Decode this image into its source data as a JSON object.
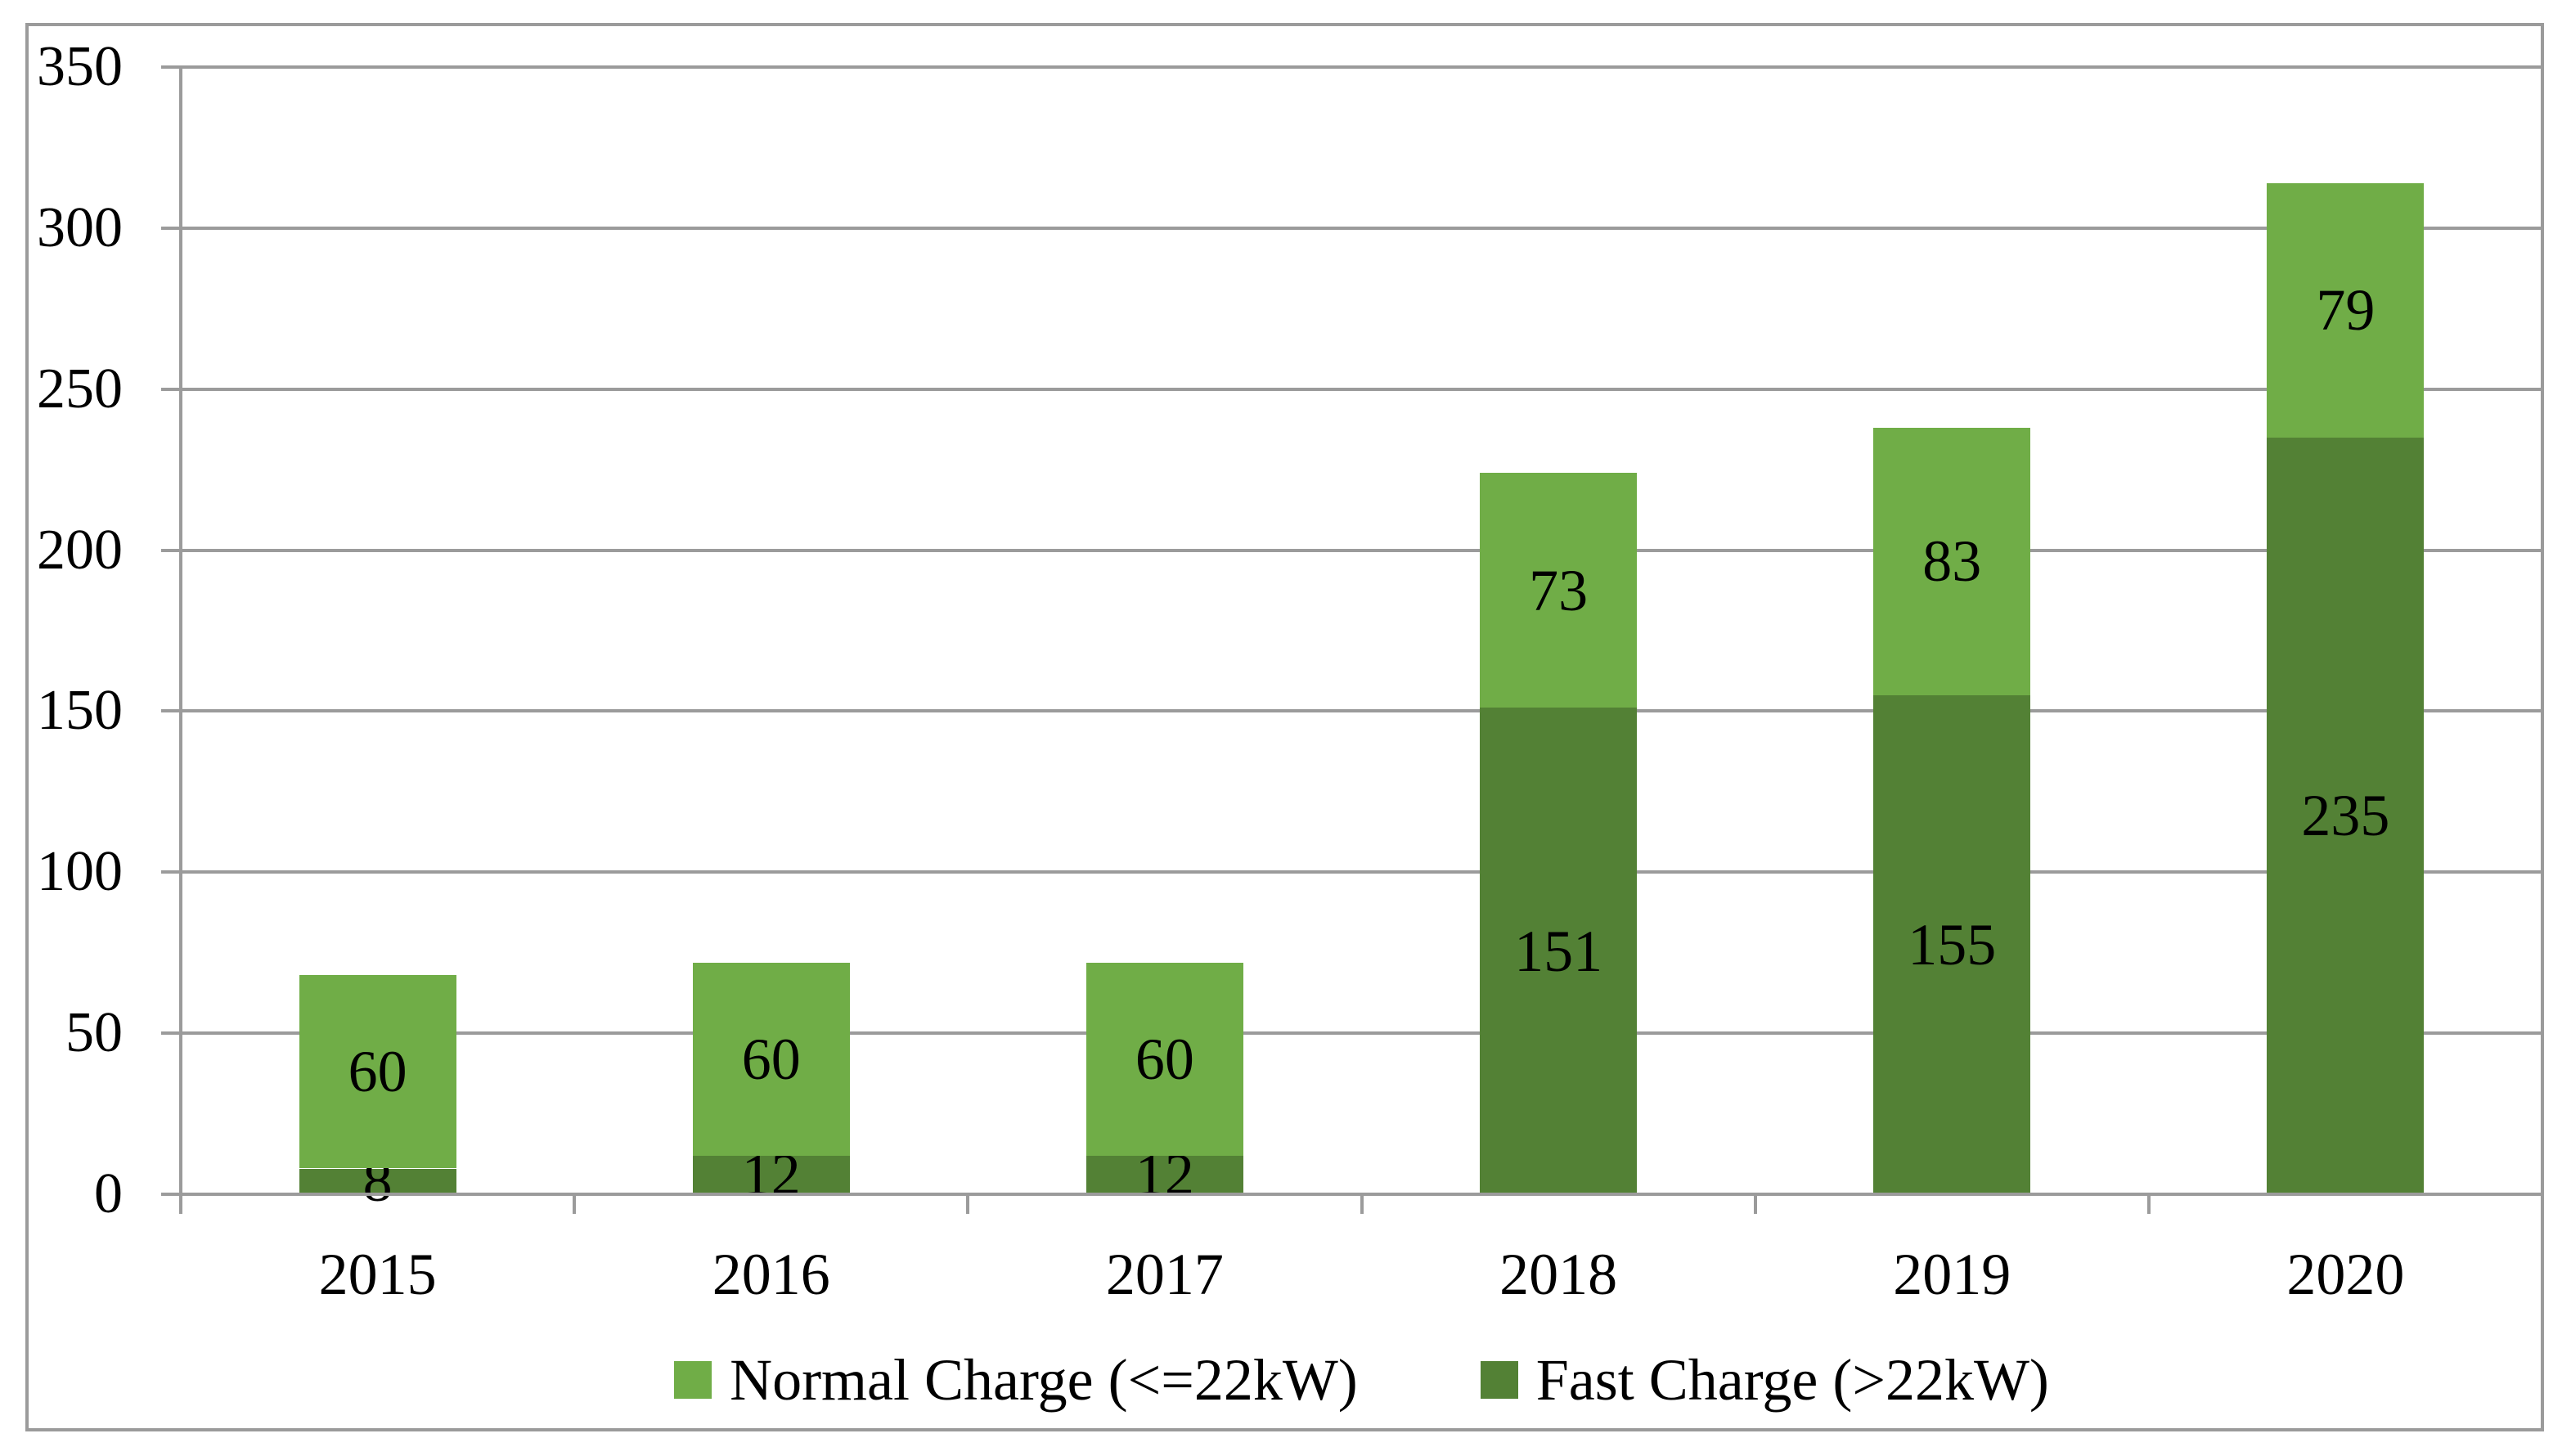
{
  "chart_data": {
    "type": "bar",
    "stacked": true,
    "title": "",
    "xlabel": "",
    "ylabel": "",
    "categories": [
      "2015",
      "2016",
      "2017",
      "2018",
      "2019",
      "2020"
    ],
    "series": [
      {
        "name": "Fast Charge (>22kW)",
        "color": "#538135",
        "stack_position": "bottom",
        "values": [
          8,
          12,
          12,
          151,
          155,
          235
        ]
      },
      {
        "name": "Normal Charge (<=22kW)",
        "color": "#70AD47",
        "stack_position": "top",
        "values": [
          60,
          60,
          60,
          73,
          83,
          79
        ]
      }
    ],
    "legend_order": [
      1,
      0
    ],
    "legend_position": "bottom",
    "ylim": [
      0,
      350
    ],
    "yticks": [
      0,
      50,
      100,
      150,
      200,
      250,
      300,
      350
    ],
    "grid": true,
    "gridline_color": "#9b9b9b",
    "data_labels": true,
    "data_label_color": "#000000"
  }
}
